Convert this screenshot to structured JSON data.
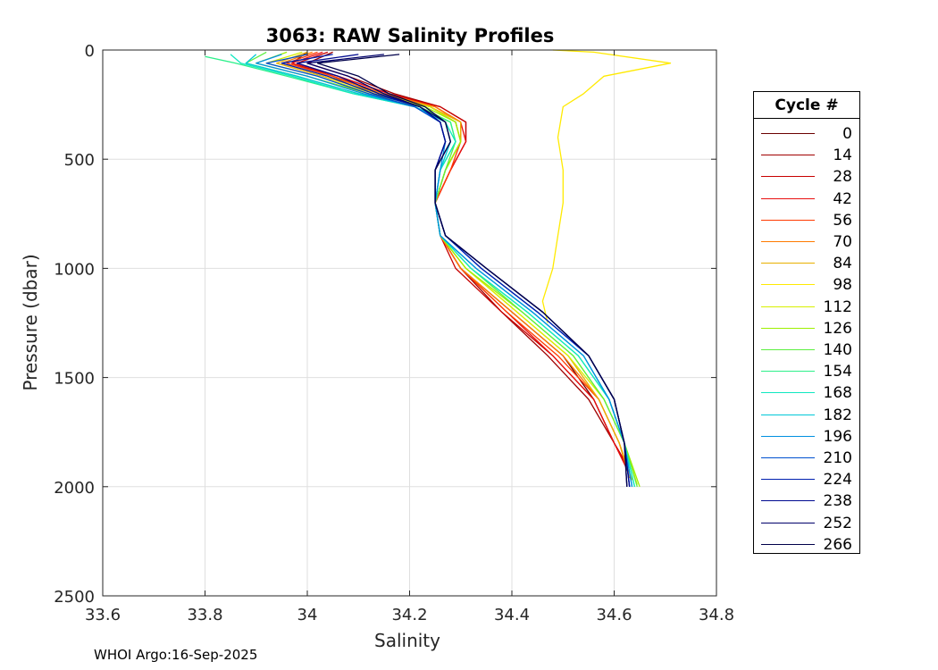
{
  "chart_data": {
    "type": "line",
    "title": "3063: RAW Salinity Profiles",
    "xlabel": "Salinity",
    "ylabel": "Pressure (dbar)",
    "xlim": [
      33.6,
      34.8
    ],
    "ylim": [
      0,
      2500
    ],
    "y_reversed": true,
    "xticks": [
      "33.6",
      "33.8",
      "34",
      "34.2",
      "34.4",
      "34.6",
      "34.8"
    ],
    "yticks": [
      "0",
      "500",
      "1000",
      "1500",
      "2000",
      "2500"
    ],
    "grid": true,
    "legend": {
      "title": "Cycle #",
      "placement": "right",
      "entries": [
        {
          "label": "0",
          "color": "#6b0000"
        },
        {
          "label": "14",
          "color": "#a00000"
        },
        {
          "label": "28",
          "color": "#c80000"
        },
        {
          "label": "42",
          "color": "#e81010"
        },
        {
          "label": "56",
          "color": "#ff3a00"
        },
        {
          "label": "70",
          "color": "#ff7a00"
        },
        {
          "label": "84",
          "color": "#e8b000"
        },
        {
          "label": "98",
          "color": "#ffea00"
        },
        {
          "label": "112",
          "color": "#d8f000"
        },
        {
          "label": "126",
          "color": "#9ef000"
        },
        {
          "label": "140",
          "color": "#5cf040"
        },
        {
          "label": "154",
          "color": "#2cf08a"
        },
        {
          "label": "168",
          "color": "#10e8c0"
        },
        {
          "label": "182",
          "color": "#00c8d8"
        },
        {
          "label": "196",
          "color": "#0090e0"
        },
        {
          "label": "210",
          "color": "#0050d0"
        },
        {
          "label": "224",
          "color": "#0020b0"
        },
        {
          "label": "238",
          "color": "#000a90"
        },
        {
          "label": "252",
          "color": "#00006a"
        },
        {
          "label": "266",
          "color": "#00004a"
        }
      ]
    },
    "series": [
      {
        "name": "cycle 0",
        "color": "#6b0000",
        "x": [
          34.0,
          33.97,
          34.05,
          34.14,
          34.24,
          34.29,
          34.3,
          34.27,
          34.25,
          34.26,
          34.3,
          34.4,
          34.5,
          34.56,
          34.6,
          34.62
        ],
        "y": [
          10,
          60,
          120,
          200,
          260,
          330,
          420,
          550,
          700,
          850,
          1000,
          1200,
          1400,
          1600,
          1800,
          1880
        ]
      },
      {
        "name": "cycle 14",
        "color": "#a00000",
        "x": [
          34.05,
          34.0,
          34.08,
          34.17,
          34.26,
          34.31,
          34.31,
          34.28,
          34.25,
          34.26,
          34.3,
          34.38,
          34.47,
          34.55,
          34.6,
          34.62
        ],
        "y": [
          10,
          60,
          120,
          200,
          260,
          330,
          420,
          550,
          700,
          850,
          1000,
          1200,
          1400,
          1600,
          1800,
          1890
        ]
      },
      {
        "name": "cycle 28",
        "color": "#c80000",
        "x": [
          34.04,
          33.98,
          34.06,
          34.16,
          34.26,
          34.31,
          34.31,
          34.28,
          34.25,
          34.26,
          34.29,
          34.38,
          34.48,
          34.56,
          34.6,
          34.625
        ],
        "y": [
          10,
          60,
          120,
          200,
          260,
          330,
          420,
          550,
          700,
          850,
          1000,
          1200,
          1400,
          1600,
          1800,
          1900
        ]
      },
      {
        "name": "cycle 42",
        "color": "#e81010",
        "x": [
          34.03,
          33.97,
          34.06,
          34.16,
          34.25,
          34.3,
          34.31,
          34.28,
          34.25,
          34.26,
          34.3,
          34.39,
          34.48,
          34.56,
          34.6,
          34.625
        ],
        "y": [
          10,
          60,
          120,
          200,
          260,
          330,
          420,
          550,
          700,
          850,
          1000,
          1200,
          1400,
          1600,
          1800,
          1920
        ]
      },
      {
        "name": "cycle 56",
        "color": "#ff3a00",
        "x": [
          34.02,
          33.96,
          34.05,
          34.15,
          34.25,
          34.3,
          34.3,
          34.28,
          34.25,
          34.26,
          34.3,
          34.39,
          34.49,
          34.57,
          34.61,
          34.63
        ],
        "y": [
          10,
          60,
          120,
          200,
          260,
          330,
          420,
          550,
          700,
          850,
          1000,
          1200,
          1400,
          1600,
          1800,
          1940
        ]
      },
      {
        "name": "cycle 70",
        "color": "#ff7a00",
        "x": [
          34.01,
          33.95,
          34.04,
          34.15,
          34.25,
          34.3,
          34.3,
          34.27,
          34.25,
          34.26,
          34.3,
          34.4,
          34.5,
          34.57,
          34.61,
          34.63
        ],
        "y": [
          10,
          60,
          120,
          200,
          260,
          330,
          420,
          550,
          700,
          850,
          1000,
          1200,
          1400,
          1600,
          1800,
          1960
        ]
      },
      {
        "name": "cycle 84",
        "color": "#e8b000",
        "x": [
          34.0,
          33.94,
          34.03,
          34.14,
          34.24,
          34.3,
          34.3,
          34.27,
          34.25,
          34.26,
          34.31,
          34.41,
          34.51,
          34.57,
          34.61,
          34.635
        ],
        "y": [
          10,
          60,
          120,
          200,
          260,
          330,
          420,
          550,
          700,
          850,
          1000,
          1200,
          1400,
          1600,
          1800,
          1970
        ]
      },
      {
        "name": "cycle 98",
        "color": "#ffea00",
        "x": [
          34.48,
          34.56,
          34.71,
          34.58,
          34.54,
          34.5,
          34.49,
          34.5,
          34.5,
          34.49,
          34.48,
          34.46,
          34.47
        ],
        "y": [
          0,
          10,
          60,
          120,
          200,
          260,
          400,
          550,
          700,
          850,
          1000,
          1150,
          1250
        ]
      },
      {
        "name": "cycle 112",
        "color": "#d8f000",
        "x": [
          33.99,
          33.92,
          34.02,
          34.13,
          34.24,
          34.29,
          34.3,
          34.27,
          34.25,
          34.26,
          34.31,
          34.41,
          34.51,
          34.58,
          34.62,
          34.645
        ],
        "y": [
          10,
          60,
          120,
          200,
          260,
          330,
          420,
          550,
          700,
          850,
          1000,
          1200,
          1400,
          1600,
          1800,
          1990
        ]
      },
      {
        "name": "cycle 126",
        "color": "#9ef000",
        "x": [
          33.96,
          33.9,
          34.0,
          34.12,
          34.23,
          34.29,
          34.3,
          34.27,
          34.25,
          34.26,
          34.31,
          34.42,
          34.52,
          34.58,
          34.62,
          34.65
        ],
        "y": [
          10,
          60,
          120,
          200,
          260,
          330,
          420,
          550,
          700,
          850,
          1000,
          1200,
          1400,
          1600,
          1800,
          2000
        ]
      },
      {
        "name": "cycle 140",
        "color": "#5cf040",
        "x": [
          33.92,
          33.88,
          33.98,
          34.1,
          34.22,
          34.28,
          34.29,
          34.27,
          34.25,
          34.26,
          34.32,
          34.42,
          34.52,
          34.58,
          34.62,
          34.645
        ],
        "y": [
          10,
          60,
          120,
          200,
          260,
          330,
          420,
          550,
          700,
          850,
          1000,
          1200,
          1400,
          1600,
          1800,
          2000
        ]
      },
      {
        "name": "cycle 154",
        "color": "#2cf08a",
        "x": [
          33.8,
          33.86,
          33.96,
          34.09,
          34.21,
          34.28,
          34.29,
          34.26,
          34.25,
          34.26,
          34.32,
          34.43,
          34.53,
          34.59,
          34.62,
          34.64
        ],
        "y": [
          30,
          60,
          120,
          200,
          260,
          330,
          420,
          550,
          700,
          850,
          1000,
          1200,
          1400,
          1600,
          1800,
          2000
        ]
      },
      {
        "name": "cycle 168",
        "color": "#10e8c0",
        "x": [
          33.85,
          33.87,
          33.97,
          34.09,
          34.21,
          34.27,
          34.29,
          34.26,
          34.25,
          34.26,
          34.32,
          34.43,
          34.53,
          34.59,
          34.62,
          34.64
        ],
        "y": [
          20,
          60,
          120,
          200,
          260,
          330,
          420,
          550,
          700,
          850,
          1000,
          1200,
          1400,
          1600,
          1800,
          2000
        ]
      },
      {
        "name": "cycle 182",
        "color": "#00c8d8",
        "x": [
          33.9,
          33.88,
          33.98,
          34.1,
          34.21,
          34.27,
          34.28,
          34.26,
          34.25,
          34.26,
          34.33,
          34.44,
          34.54,
          34.59,
          34.62,
          34.635
        ],
        "y": [
          20,
          60,
          120,
          200,
          260,
          330,
          420,
          550,
          700,
          850,
          1000,
          1200,
          1400,
          1600,
          1800,
          2000
        ]
      },
      {
        "name": "cycle 196",
        "color": "#0090e0",
        "x": [
          33.95,
          33.9,
          34.0,
          34.11,
          34.21,
          34.26,
          34.27,
          34.26,
          34.25,
          34.26,
          34.33,
          34.44,
          34.54,
          34.59,
          34.62,
          34.635
        ],
        "y": [
          20,
          60,
          120,
          200,
          260,
          330,
          420,
          550,
          700,
          850,
          1000,
          1200,
          1400,
          1600,
          1800,
          2000
        ]
      },
      {
        "name": "cycle 210",
        "color": "#0050d0",
        "x": [
          34.0,
          33.92,
          34.02,
          34.12,
          34.21,
          34.26,
          34.27,
          34.25,
          34.25,
          34.27,
          34.34,
          34.45,
          34.55,
          34.6,
          34.62,
          34.63
        ],
        "y": [
          20,
          60,
          120,
          200,
          260,
          330,
          420,
          550,
          700,
          850,
          1000,
          1200,
          1400,
          1600,
          1800,
          2000
        ]
      },
      {
        "name": "cycle 224",
        "color": "#0020b0",
        "x": [
          34.05,
          33.95,
          34.04,
          34.13,
          34.22,
          34.26,
          34.27,
          34.25,
          34.25,
          34.27,
          34.34,
          34.45,
          34.55,
          34.6,
          34.62,
          34.63
        ],
        "y": [
          20,
          60,
          120,
          200,
          260,
          330,
          420,
          550,
          700,
          850,
          1000,
          1200,
          1400,
          1600,
          1800,
          2000
        ]
      },
      {
        "name": "cycle 238",
        "color": "#000a90",
        "x": [
          34.1,
          33.98,
          34.06,
          34.14,
          34.22,
          34.26,
          34.27,
          34.25,
          34.25,
          34.27,
          34.35,
          34.46,
          34.55,
          34.6,
          34.62,
          34.63
        ],
        "y": [
          20,
          60,
          120,
          200,
          260,
          330,
          420,
          550,
          700,
          850,
          1000,
          1200,
          1400,
          1600,
          1800,
          2000
        ]
      },
      {
        "name": "cycle 252",
        "color": "#00006a",
        "x": [
          34.15,
          34.0,
          34.08,
          34.15,
          34.22,
          34.27,
          34.28,
          34.25,
          34.25,
          34.27,
          34.35,
          34.46,
          34.55,
          34.6,
          34.62,
          34.625
        ],
        "y": [
          20,
          60,
          120,
          200,
          260,
          330,
          420,
          550,
          700,
          850,
          1000,
          1200,
          1400,
          1600,
          1800,
          2000
        ]
      },
      {
        "name": "cycle 266",
        "color": "#00004a",
        "x": [
          34.18,
          34.02,
          34.1,
          34.16,
          34.23,
          34.27,
          34.28,
          34.25,
          34.25,
          34.27,
          34.35,
          34.46,
          34.55,
          34.6,
          34.62,
          34.625
        ],
        "y": [
          20,
          60,
          120,
          200,
          260,
          330,
          420,
          550,
          700,
          850,
          1000,
          1200,
          1400,
          1600,
          1800,
          2000
        ]
      }
    ]
  },
  "footer": "WHOI Argo:16-Sep-2025"
}
